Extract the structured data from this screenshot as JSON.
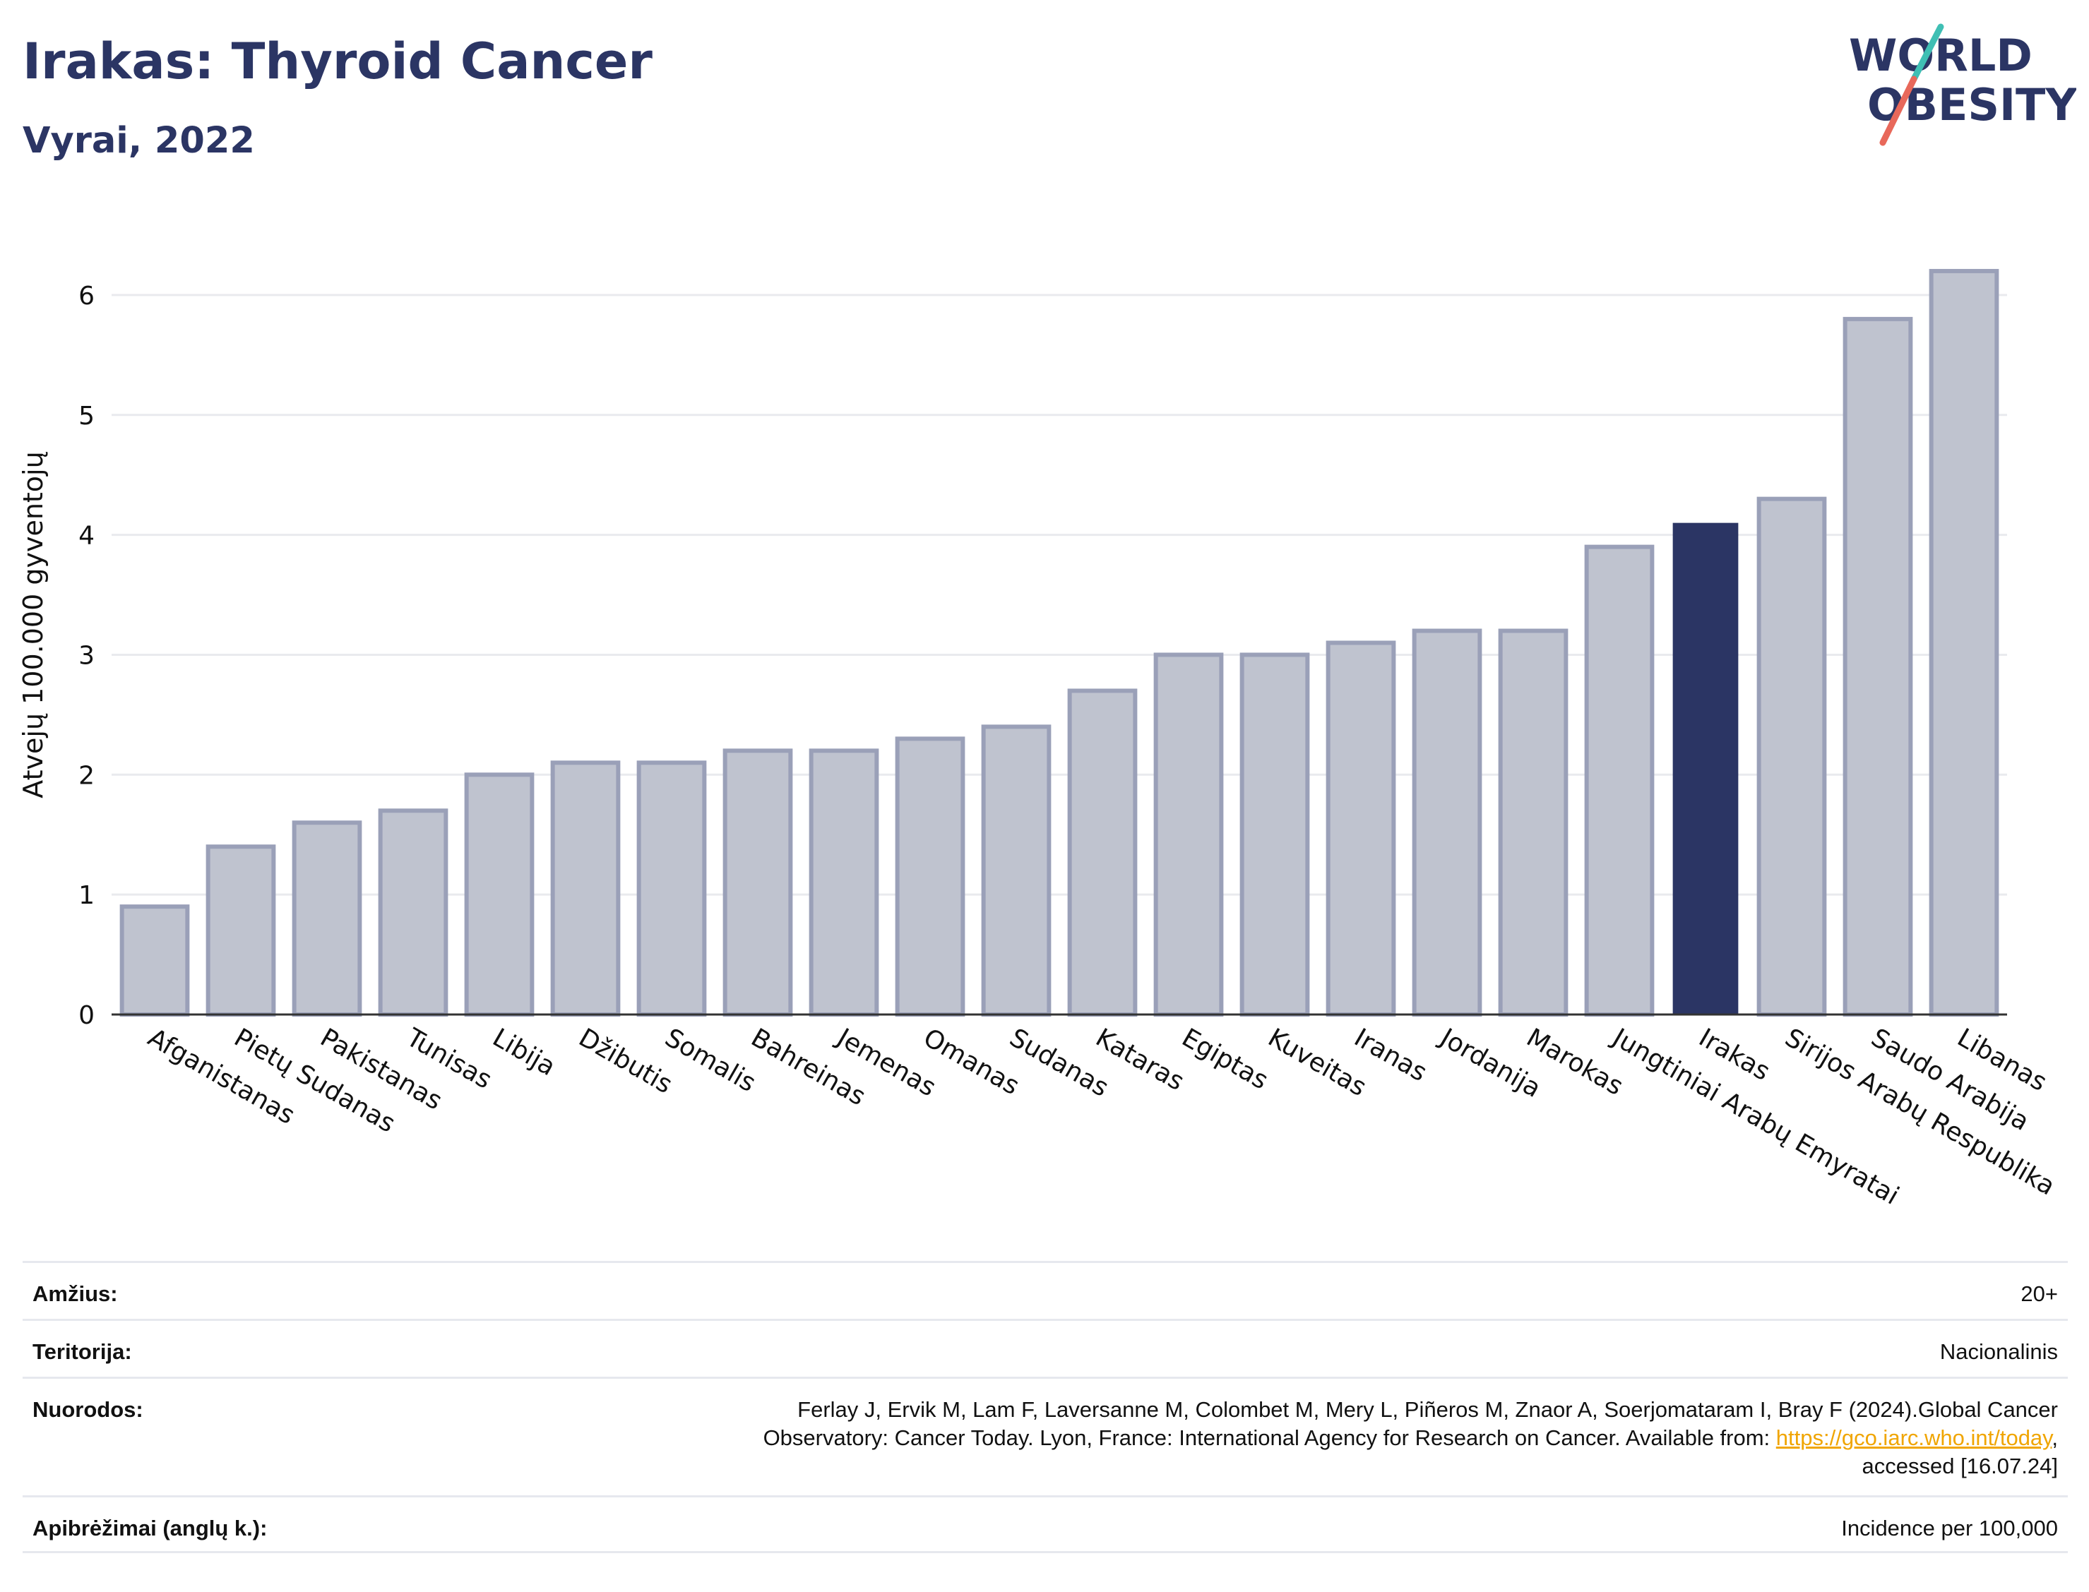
{
  "header": {
    "title": "Irakas: Thyroid Cancer",
    "subtitle": "Vyrai, 2022"
  },
  "logo": {
    "line1": "WORLD",
    "line2": "OBESITY",
    "text_color": "#2b3564",
    "slash_colors": [
      "#3fbfb4",
      "#e8685a"
    ]
  },
  "chart_data": {
    "type": "bar",
    "title": "Irakas: Thyroid Cancer",
    "subtitle": "Vyrai, 2022",
    "xlabel": "",
    "ylabel": "Atvejų 100.000 gyventojų",
    "ylim": [
      0,
      6.5
    ],
    "yticks": [
      0,
      1,
      2,
      3,
      4,
      5,
      6
    ],
    "grid": true,
    "highlight": "Irakas",
    "colors": {
      "highlight": "#2b3564",
      "default_fill": "#bfc3cf",
      "default_stroke": "#9aa0b8"
    },
    "categories": [
      "Afganistanas",
      "Pietų Sudanas",
      "Pakistanas",
      "Tunisas",
      "Libija",
      "Džibutis",
      "Somalis",
      "Bahreinas",
      "Jemenas",
      "Omanas",
      "Sudanas",
      "Kataras",
      "Egiptas",
      "Kuveitas",
      "Iranas",
      "Jordanija",
      "Marokas",
      "Jungtiniai Arabų Emyratai",
      "Irakas",
      "Sirijos Arabų Respublika",
      "Saudo Arabija",
      "Libanas"
    ],
    "values": [
      0.9,
      1.4,
      1.6,
      1.7,
      2.0,
      2.1,
      2.1,
      2.2,
      2.2,
      2.3,
      2.4,
      2.7,
      3.0,
      3.0,
      3.1,
      3.2,
      3.2,
      3.9,
      4.1,
      4.3,
      5.8,
      6.2
    ]
  },
  "footer": {
    "rows": [
      {
        "label": "Amžius:",
        "value": "20+"
      },
      {
        "label": "Teritorija:",
        "value": "Nacionalinis"
      },
      {
        "label": "Nuorodos:",
        "value_line1": "Ferlay J, Ervik M, Lam F, Laversanne M, Colombet M, Mery L, Piñeros M, Znaor A, Soerjomataram I, Bray F (2024).Global Cancer",
        "value_line2_pre": "Observatory: Cancer Today. Lyon, France: International Agency for Research on Cancer. Available from: ",
        "value_link": "https://gco.iarc.who.int/today",
        "value_line2_post": ",",
        "value_line3": "accessed [16.07.24]"
      },
      {
        "label": "Apibrėžimai (anglų k.):",
        "value": "Incidence per 100,000"
      }
    ]
  }
}
